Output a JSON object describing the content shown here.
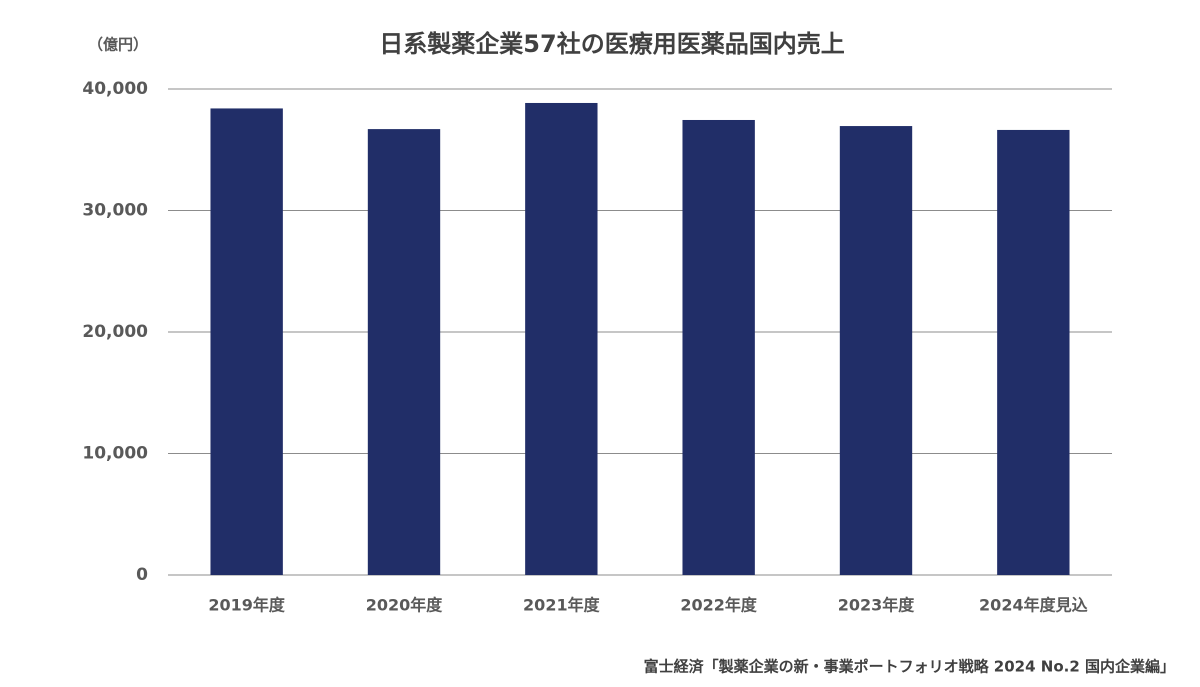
{
  "chart_data": {
    "type": "bar",
    "title": "日系製薬企業57社の医療用医薬品国内売上",
    "y_label": "（億円）",
    "source": "富士経済「製薬企業の新・事業ポートフォリオ戦略 2024 No.2 国内企業編」",
    "categories": [
      "2019年度",
      "2020年度",
      "2021年度",
      "2022年度",
      "2023年度",
      "2024年度見込"
    ],
    "values": [
      38400,
      36700,
      38850,
      37450,
      36950,
      36630
    ],
    "color": "#212e68",
    "ylim": [
      0,
      40000
    ],
    "yticks": [
      0,
      {
        "value": 10000,
        "label": "10,000"
      },
      {
        "value": 20000,
        "label": "20,000"
      },
      {
        "value": 30000,
        "label": "30,000"
      },
      {
        "value": 40000,
        "label": "40,000"
      }
    ],
    "grid": true
  }
}
